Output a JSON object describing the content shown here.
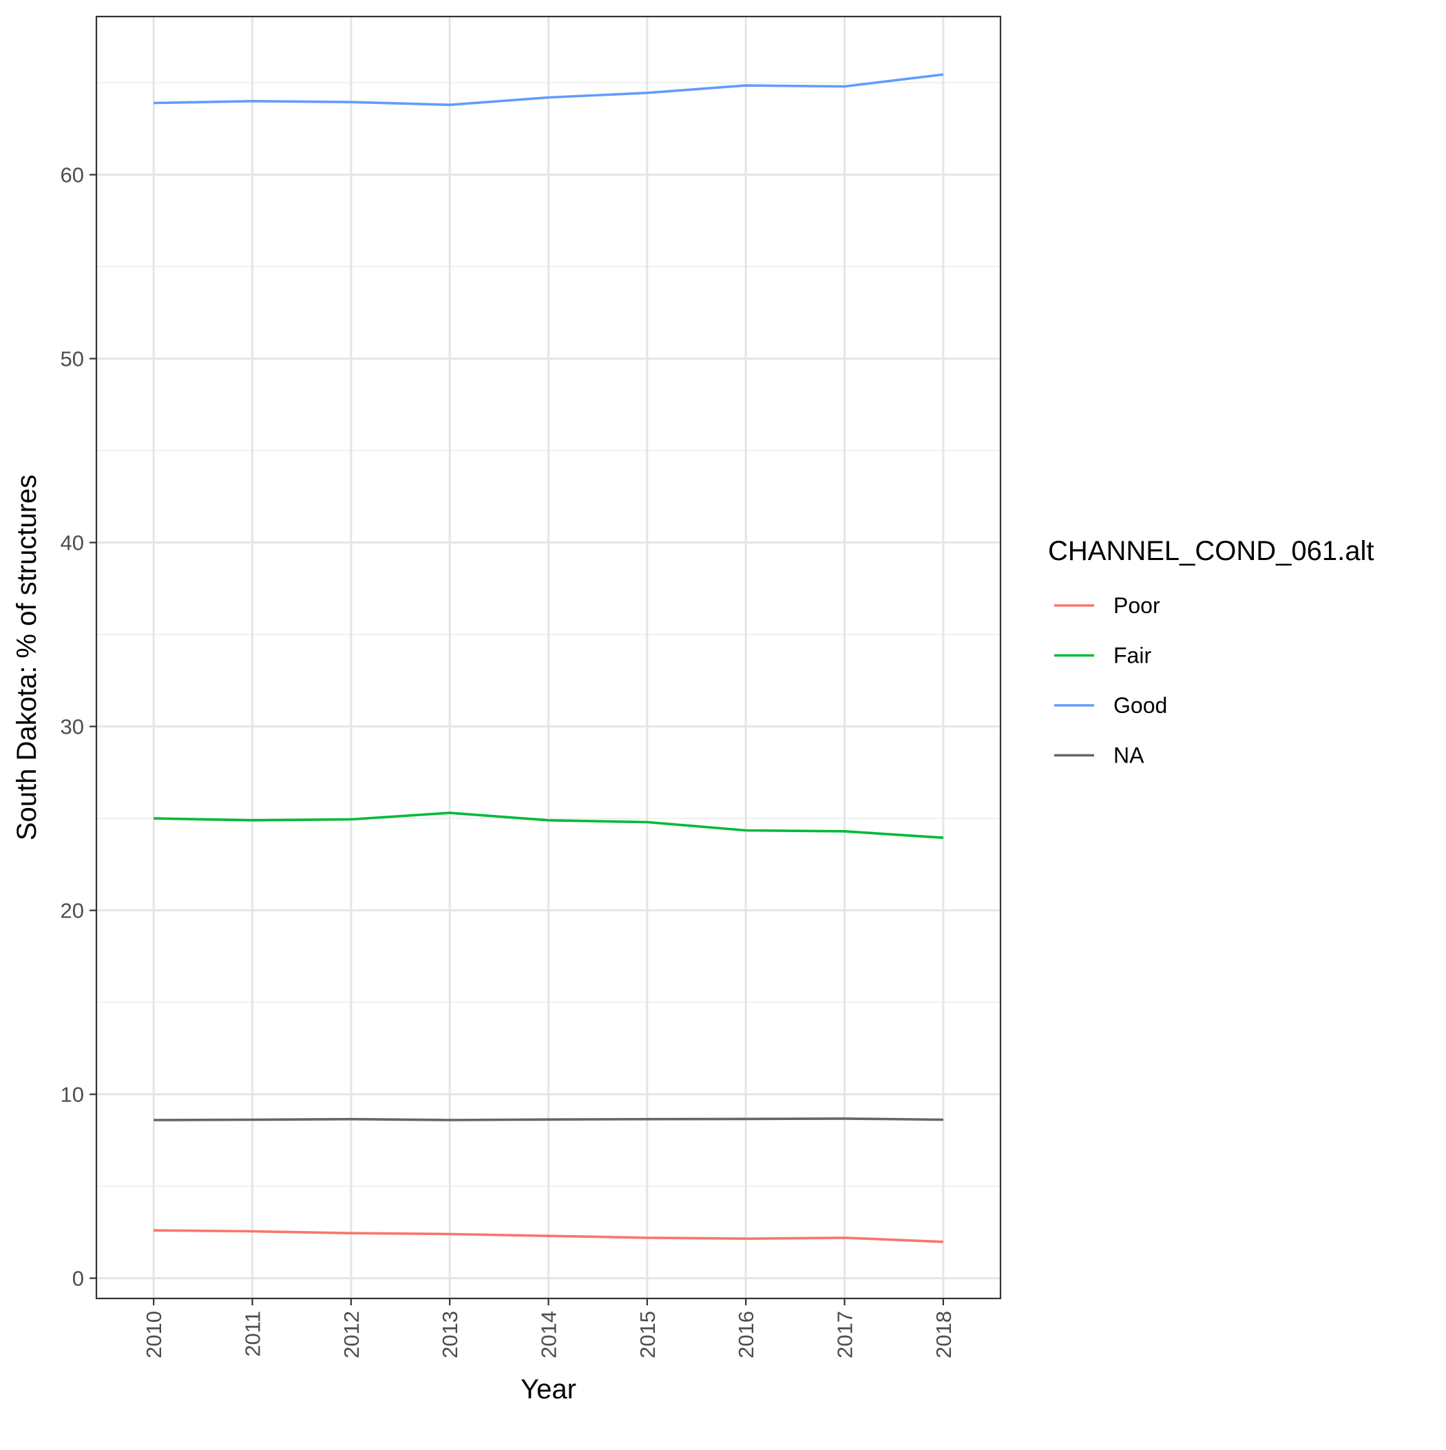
{
  "chart_data": {
    "type": "line",
    "title": "",
    "xlabel": "Year",
    "ylabel": "South Dakota: % of structures",
    "x": [
      2010,
      2011,
      2012,
      2013,
      2014,
      2015,
      2016,
      2017,
      2018
    ],
    "x_tick_labels": [
      "2010",
      "2011",
      "2012",
      "2013",
      "2014",
      "2015",
      "2016",
      "2017",
      "2018"
    ],
    "y_ticks": [
      0,
      10,
      20,
      30,
      40,
      50,
      60
    ],
    "y_tick_labels": [
      "0",
      "10",
      "20",
      "30",
      "40",
      "50",
      "60"
    ],
    "xlim": [
      2009.42,
      2018.58
    ],
    "ylim": [
      -1.1,
      68.6
    ],
    "grid": true,
    "legend": {
      "title": "CHANNEL_COND_061.alt",
      "placement": "right"
    },
    "series": [
      {
        "name": "Poor",
        "color": "#f8766d",
        "values": [
          2.6,
          2.55,
          2.45,
          2.4,
          2.3,
          2.2,
          2.15,
          2.2,
          1.98
        ]
      },
      {
        "name": "Fair",
        "color": "#00ba38",
        "values": [
          25.0,
          24.9,
          24.95,
          25.3,
          24.9,
          24.8,
          24.35,
          24.3,
          23.95
        ]
      },
      {
        "name": "Good",
        "color": "#619cff",
        "values": [
          63.9,
          64.0,
          63.95,
          63.8,
          64.2,
          64.45,
          64.85,
          64.8,
          65.45
        ]
      },
      {
        "name": "NA",
        "color": "#666666",
        "values": [
          8.6,
          8.62,
          8.65,
          8.6,
          8.63,
          8.65,
          8.66,
          8.68,
          8.62
        ]
      }
    ]
  }
}
